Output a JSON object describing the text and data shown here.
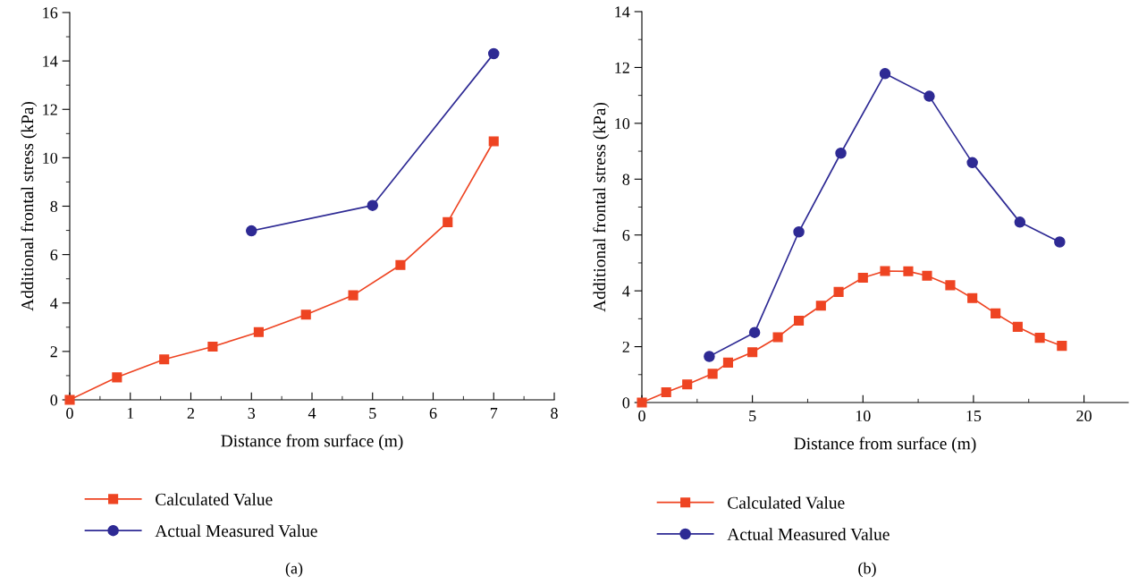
{
  "chart_data": [
    {
      "type": "line",
      "xlabel": "Distance from surface (m)",
      "ylabel": "Additional frontal stress (kPa)",
      "annotations": [
        "(a)"
      ],
      "xlim": [
        0,
        8
      ],
      "ylim": [
        0,
        16
      ],
      "xticks": [
        0,
        1,
        2,
        3,
        4,
        5,
        6,
        7,
        8
      ],
      "yticks": [
        0,
        2,
        4,
        6,
        8,
        10,
        12,
        14,
        16
      ],
      "legend": "bottom",
      "grid": false,
      "line_style": "solid",
      "series": [
        {
          "name": "Calculated Value",
          "color": "#ee4422",
          "marker": "square",
          "x": [
            0,
            0.78,
            1.56,
            2.36,
            3.12,
            3.9,
            4.68,
            5.46,
            6.24,
            7.0
          ],
          "values": [
            0,
            0.93,
            1.67,
            2.2,
            2.8,
            3.52,
            4.32,
            5.57,
            7.34,
            10.68
          ]
        },
        {
          "name": "Actual Measured Value",
          "color": "#2e2a94",
          "marker": "circle",
          "x": [
            3,
            5,
            7
          ],
          "values": [
            6.98,
            8.03,
            14.3
          ]
        }
      ]
    },
    {
      "type": "line",
      "xlabel": "Distance from surface (m)",
      "ylabel": "Additional frontal stress (kPa)",
      "annotations": [
        "(b)"
      ],
      "xlim": [
        0,
        22
      ],
      "ylim": [
        0,
        14
      ],
      "xticks": [
        0,
        5,
        10,
        15,
        20
      ],
      "yticks": [
        0,
        2,
        4,
        6,
        8,
        10,
        12,
        14
      ],
      "legend": "bottom",
      "grid": false,
      "line_style": "solid",
      "series": [
        {
          "name": "Calculated Value",
          "color": "#ee4422",
          "marker": "square",
          "x": [
            0,
            1.1,
            2.05,
            3.2,
            3.9,
            5.0,
            6.15,
            7.1,
            8.1,
            8.9,
            10.0,
            11.0,
            12.05,
            12.9,
            13.95,
            14.95,
            16.0,
            17.0,
            18.0,
            19.0
          ],
          "values": [
            0,
            0.37,
            0.65,
            1.03,
            1.43,
            1.8,
            2.34,
            2.93,
            3.47,
            3.96,
            4.47,
            4.71,
            4.7,
            4.54,
            4.2,
            3.74,
            3.19,
            2.71,
            2.32,
            2.03
          ]
        },
        {
          "name": "Actual Measured Value",
          "color": "#2e2a94",
          "marker": "circle",
          "x": [
            3.05,
            5.1,
            7.1,
            9.0,
            11.0,
            13.0,
            14.95,
            17.1,
            18.9
          ],
          "values": [
            1.65,
            2.51,
            6.11,
            8.93,
            11.78,
            10.97,
            8.59,
            6.46,
            5.75
          ]
        }
      ]
    }
  ]
}
